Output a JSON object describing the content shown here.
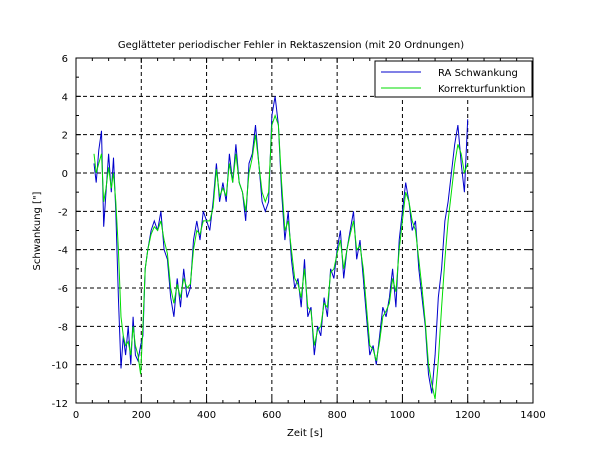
{
  "chart_data": {
    "type": "line",
    "title": "Geglätteter periodischer Fehler in Rektaszension (mit 20 Ordnungen)",
    "xlabel": "Zeit [s]",
    "ylabel": "Schwankung [\"]",
    "xlim": [
      0,
      1400
    ],
    "ylim": [
      -12,
      6
    ],
    "xticks": [
      "0",
      "200",
      "400",
      "600",
      "800",
      "1000",
      "1200",
      "1400"
    ],
    "yticks": [
      "-12",
      "-10",
      "-8",
      "-6",
      "-4",
      "-2",
      "0",
      "2",
      "4",
      "6"
    ],
    "grid": true,
    "legend_position": "top-right",
    "series": [
      {
        "name": "RA Schwankung",
        "color": "#0000cc",
        "x": [
          55,
          62,
          70,
          78,
          85,
          92,
          100,
          108,
          115,
          122,
          130,
          138,
          145,
          152,
          160,
          168,
          175,
          182,
          190,
          198,
          205,
          212,
          220,
          230,
          240,
          250,
          260,
          270,
          280,
          290,
          300,
          310,
          320,
          330,
          340,
          350,
          360,
          370,
          380,
          390,
          400,
          410,
          420,
          430,
          440,
          450,
          460,
          470,
          480,
          490,
          500,
          510,
          520,
          530,
          540,
          550,
          560,
          570,
          580,
          590,
          600,
          610,
          620,
          630,
          640,
          650,
          660,
          670,
          680,
          690,
          700,
          710,
          720,
          730,
          740,
          750,
          760,
          770,
          780,
          790,
          800,
          810,
          820,
          830,
          840,
          850,
          860,
          870,
          880,
          890,
          900,
          910,
          920,
          930,
          940,
          950,
          960,
          970,
          980,
          990,
          1000,
          1010,
          1020,
          1030,
          1040,
          1050,
          1060,
          1070,
          1080,
          1090,
          1100,
          1110,
          1120,
          1130,
          1140,
          1150,
          1160,
          1170,
          1180,
          1190,
          1200
        ],
        "values": [
          0.5,
          -0.5,
          1.2,
          2.2,
          -2.8,
          -1.0,
          1.0,
          -1.0,
          0.8,
          -2.0,
          -6.5,
          -10.2,
          -8.5,
          -9.5,
          -8.0,
          -10.0,
          -7.5,
          -9.5,
          -9.8,
          -9.0,
          -8.5,
          -5.0,
          -4.0,
          -3.0,
          -2.5,
          -3.0,
          -2.0,
          -4.0,
          -4.5,
          -6.5,
          -7.5,
          -5.5,
          -7.0,
          -5.0,
          -6.5,
          -6.0,
          -3.5,
          -2.5,
          -3.5,
          -2.0,
          -2.5,
          -3.0,
          -1.5,
          0.5,
          -1.5,
          -0.5,
          -1.5,
          1.0,
          -0.5,
          1.5,
          -0.5,
          -1.0,
          -2.5,
          0.5,
          1.0,
          2.5,
          0.5,
          -1.5,
          -2.0,
          -1.5,
          3.0,
          4.0,
          2.5,
          -1.0,
          -3.5,
          -2.0,
          -4.5,
          -6.0,
          -5.5,
          -7.0,
          -4.5,
          -7.5,
          -7.0,
          -9.5,
          -8.0,
          -8.5,
          -6.5,
          -7.5,
          -5.0,
          -5.5,
          -4.0,
          -3.0,
          -5.5,
          -4.0,
          -3.0,
          -2.0,
          -4.5,
          -3.5,
          -5.5,
          -7.5,
          -9.5,
          -9.0,
          -10.0,
          -8.5,
          -7.0,
          -7.5,
          -6.5,
          -5.0,
          -7.0,
          -3.5,
          -2.0,
          -0.5,
          -1.5,
          -3.0,
          -2.5,
          -5.0,
          -6.5,
          -8.0,
          -10.5,
          -11.5,
          -9.5,
          -6.5,
          -5.0,
          -2.5,
          -1.5,
          0.0,
          1.5,
          2.5,
          0.5,
          -1.0,
          2.8
        ]
      },
      {
        "name": "Korrekturfunktion",
        "color": "#00dd00",
        "x": [
          55,
          62,
          70,
          78,
          85,
          92,
          100,
          108,
          115,
          122,
          130,
          138,
          145,
          152,
          160,
          168,
          175,
          182,
          190,
          198,
          205,
          212,
          220,
          230,
          240,
          250,
          260,
          270,
          280,
          290,
          300,
          310,
          320,
          330,
          340,
          350,
          360,
          370,
          380,
          390,
          400,
          410,
          420,
          430,
          440,
          450,
          460,
          470,
          480,
          490,
          500,
          510,
          520,
          530,
          540,
          550,
          560,
          570,
          580,
          590,
          600,
          610,
          620,
          630,
          640,
          650,
          660,
          670,
          680,
          690,
          700,
          710,
          720,
          730,
          740,
          750,
          760,
          770,
          780,
          790,
          800,
          810,
          820,
          830,
          840,
          850,
          860,
          870,
          880,
          890,
          900,
          910,
          920,
          930,
          940,
          950,
          960,
          970,
          980,
          990,
          1000,
          1010,
          1020,
          1030,
          1040,
          1050,
          1060,
          1070,
          1080,
          1090,
          1100,
          1110,
          1120,
          1130,
          1140,
          1150,
          1160,
          1170,
          1180,
          1190,
          1200
        ],
        "values": [
          1.0,
          0.0,
          0.5,
          1.0,
          -1.5,
          -0.8,
          0.3,
          -0.8,
          0.0,
          -1.5,
          -4.0,
          -7.5,
          -8.5,
          -9.0,
          -8.8,
          -9.5,
          -8.0,
          -9.0,
          -9.5,
          -10.5,
          -8.0,
          -5.0,
          -4.0,
          -3.2,
          -2.8,
          -3.0,
          -2.5,
          -3.5,
          -4.2,
          -6.0,
          -6.8,
          -5.8,
          -6.5,
          -5.5,
          -6.0,
          -5.8,
          -4.0,
          -3.0,
          -3.2,
          -2.5,
          -2.5,
          -2.5,
          -1.8,
          0.2,
          -1.2,
          -0.8,
          -1.2,
          0.5,
          -0.5,
          1.0,
          -0.5,
          -1.0,
          -2.0,
          0.0,
          0.8,
          2.0,
          0.5,
          -1.0,
          -1.5,
          -1.0,
          2.5,
          3.0,
          2.5,
          -0.5,
          -3.0,
          -2.5,
          -4.0,
          -5.5,
          -5.8,
          -6.5,
          -5.0,
          -7.0,
          -7.2,
          -9.0,
          -8.2,
          -8.0,
          -6.8,
          -7.0,
          -5.2,
          -5.0,
          -4.2,
          -3.5,
          -5.0,
          -4.0,
          -3.2,
          -2.5,
          -4.0,
          -3.8,
          -5.0,
          -7.0,
          -9.0,
          -9.2,
          -9.8,
          -8.8,
          -7.5,
          -7.2,
          -6.8,
          -5.5,
          -6.2,
          -4.0,
          -2.5,
          -1.0,
          -1.5,
          -2.5,
          -3.0,
          -4.5,
          -6.0,
          -7.8,
          -10.0,
          -11.0,
          -11.8,
          -9.8,
          -7.0,
          -4.5,
          -2.5,
          -1.0,
          0.5,
          1.5,
          1.0,
          0.0,
          0.5
        ]
      }
    ]
  }
}
